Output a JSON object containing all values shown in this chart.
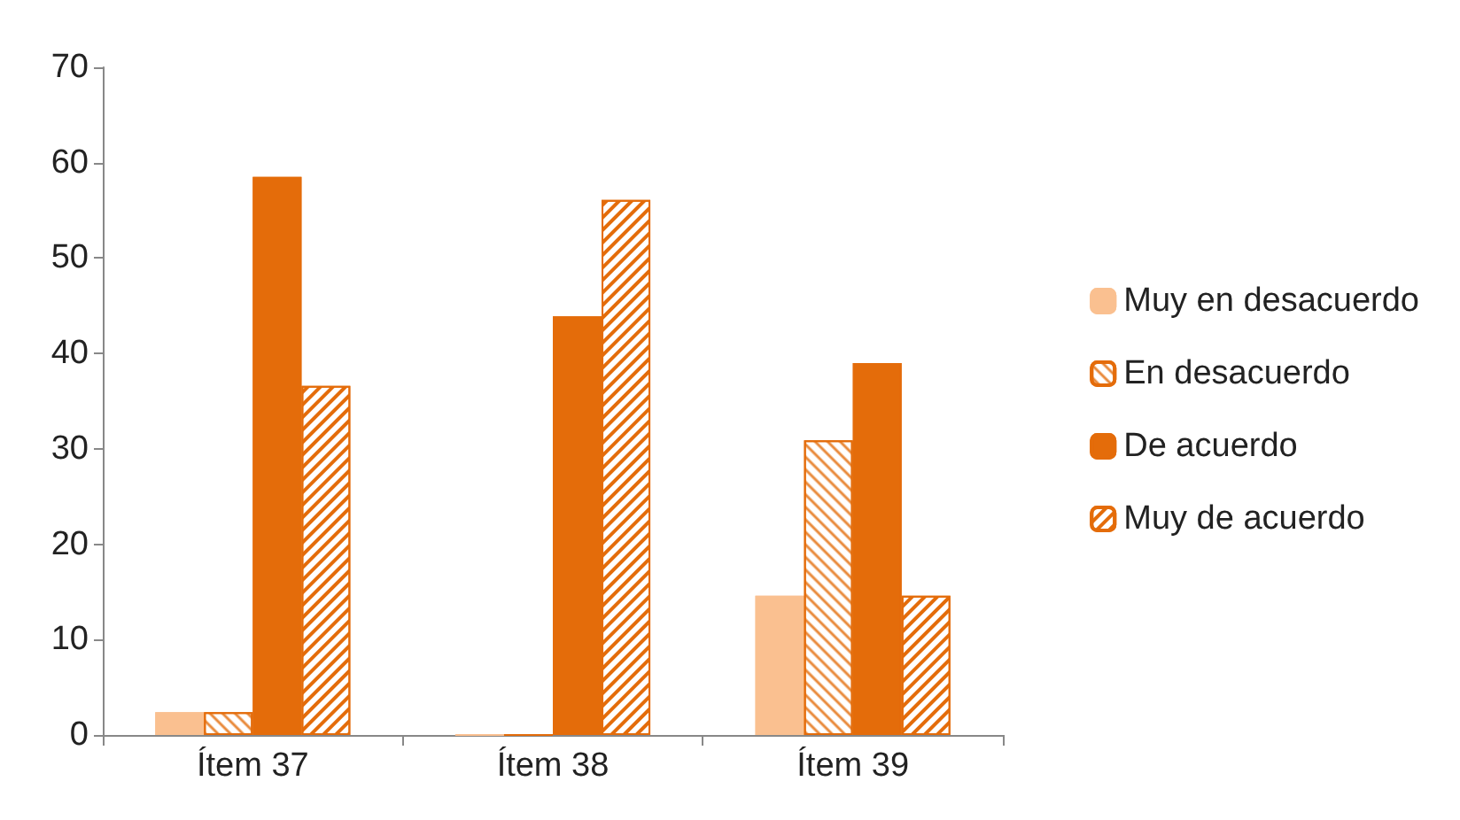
{
  "chart_data": {
    "type": "bar",
    "categories": [
      "Ítem 37",
      "Ítem 38",
      "Ítem 39"
    ],
    "series": [
      {
        "name": "Muy en desacuerdo",
        "color": "#fac090",
        "values": [
          2.4,
          0,
          14.6
        ]
      },
      {
        "name": "En desacuerdo",
        "color": "#e46c0a",
        "values": [
          2.4,
          0,
          30.9
        ]
      },
      {
        "name": "De acuerdo",
        "color": "#e46c0a",
        "values": [
          58.5,
          43.9,
          39.0
        ]
      },
      {
        "name": "Muy de acuerdo",
        "color": "#e46c0a",
        "values": [
          36.6,
          56.1,
          14.6
        ]
      }
    ],
    "ylim": [
      0,
      70
    ],
    "yticks": [
      0,
      10,
      20,
      30,
      40,
      50,
      60,
      70
    ],
    "grid": false,
    "legend": "right"
  }
}
